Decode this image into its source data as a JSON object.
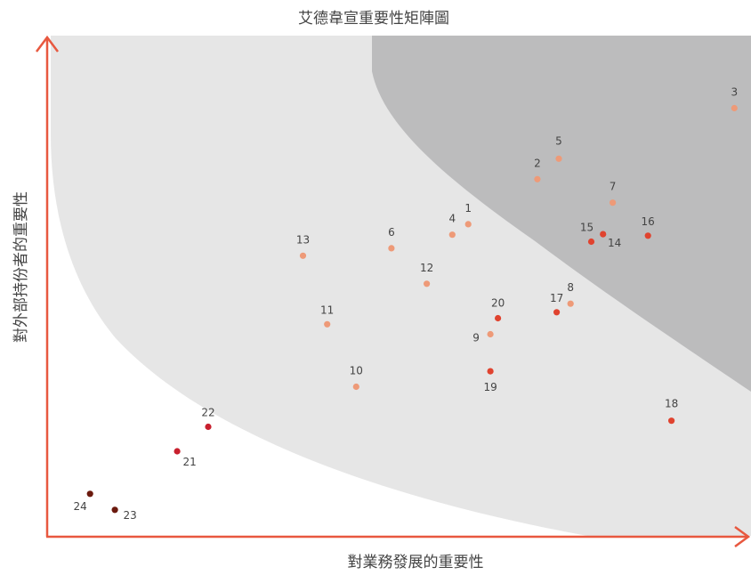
{
  "chart_data": {
    "type": "scatter",
    "title": "艾德韋宣重要性矩陣圖",
    "xlabel": "對業務發展的重要性",
    "ylabel": "對外部持份者的重要性",
    "xlim": [
      0,
      100
    ],
    "ylim": [
      0,
      100
    ],
    "grid": false,
    "legend": "none",
    "zones": [
      {
        "name": "",
        "color": "#e6e6e6"
      },
      {
        "name": "",
        "color": "#bcbcbd"
      }
    ],
    "points": [
      {
        "label": "1",
        "x": 60.9,
        "y": 62.3,
        "color": "#ee9a78"
      },
      {
        "label": "2",
        "x": 70.9,
        "y": 71.3,
        "color": "#ee9a78"
      },
      {
        "label": "3",
        "x": 99.4,
        "y": 85.5,
        "color": "#ee9a78"
      },
      {
        "label": "4",
        "x": 58.6,
        "y": 60.2,
        "color": "#ee9a78"
      },
      {
        "label": "5",
        "x": 74.0,
        "y": 75.4,
        "color": "#ee9a78"
      },
      {
        "label": "6",
        "x": 49.8,
        "y": 57.5,
        "color": "#ee9a78"
      },
      {
        "label": "7",
        "x": 81.8,
        "y": 66.6,
        "color": "#ee9a78"
      },
      {
        "label": "8",
        "x": 75.7,
        "y": 46.4,
        "color": "#ee9a78"
      },
      {
        "label": "9",
        "x": 64.1,
        "y": 40.3,
        "color": "#ee9a78"
      },
      {
        "label": "10",
        "x": 44.7,
        "y": 29.8,
        "color": "#ee9a78"
      },
      {
        "label": "11",
        "x": 40.5,
        "y": 42.3,
        "color": "#ee9a78"
      },
      {
        "label": "12",
        "x": 54.9,
        "y": 50.4,
        "color": "#ee9a78"
      },
      {
        "label": "13",
        "x": 37.0,
        "y": 56.0,
        "color": "#ee9a78"
      },
      {
        "label": "14",
        "x": 80.4,
        "y": 60.3,
        "color": "#e0432f"
      },
      {
        "label": "15",
        "x": 78.7,
        "y": 58.8,
        "color": "#e0432f"
      },
      {
        "label": "16",
        "x": 86.9,
        "y": 60.0,
        "color": "#e0432f"
      },
      {
        "label": "17",
        "x": 73.7,
        "y": 44.7,
        "color": "#e0432f"
      },
      {
        "label": "18",
        "x": 90.3,
        "y": 23.0,
        "color": "#e0432f"
      },
      {
        "label": "19",
        "x": 64.1,
        "y": 32.9,
        "color": "#e0432f"
      },
      {
        "label": "20",
        "x": 65.2,
        "y": 43.5,
        "color": "#e0432f"
      },
      {
        "label": "21",
        "x": 18.8,
        "y": 16.9,
        "color": "#c8202e"
      },
      {
        "label": "22",
        "x": 23.3,
        "y": 21.8,
        "color": "#c8202e"
      },
      {
        "label": "23",
        "x": 9.8,
        "y": 5.2,
        "color": "#6b1a0e"
      },
      {
        "label": "24",
        "x": 6.2,
        "y": 8.4,
        "color": "#6b1a0e"
      }
    ]
  },
  "colors": {
    "axis": "#e8583f",
    "text": "#444444"
  }
}
